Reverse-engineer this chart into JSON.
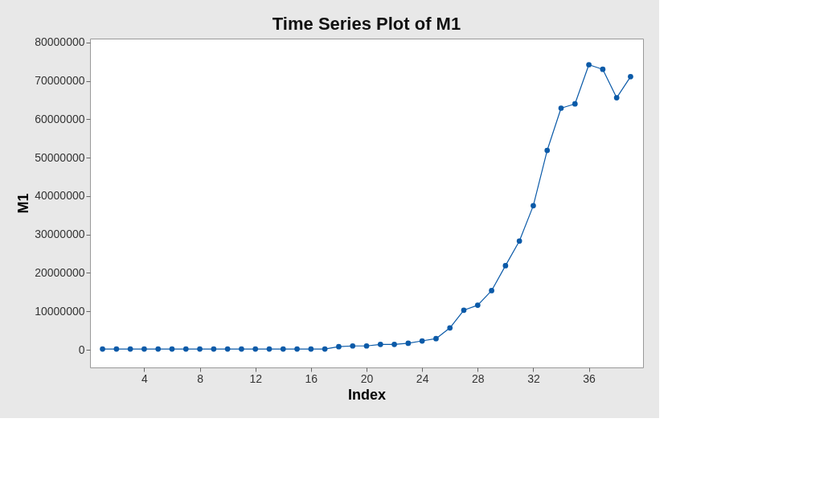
{
  "chart_data": {
    "type": "line",
    "title": "Time Series Plot of M1",
    "xlabel": "Index",
    "ylabel": "M1",
    "x": [
      1,
      2,
      3,
      4,
      5,
      6,
      7,
      8,
      9,
      10,
      11,
      12,
      13,
      14,
      15,
      16,
      17,
      18,
      19,
      20,
      21,
      22,
      23,
      24,
      25,
      26,
      27,
      28,
      29,
      30,
      31,
      32,
      33,
      34,
      35,
      36,
      37,
      38,
      39
    ],
    "series": [
      {
        "color": "#0b5aa8",
        "values": [
          200000,
          200000,
          200000,
          200000,
          200000,
          200000,
          200000,
          200000,
          200000,
          200000,
          200000,
          200000,
          200000,
          200000,
          200000,
          200000,
          200000,
          800000,
          1000000,
          1000000,
          1400000,
          1400000,
          1700000,
          2300000,
          2900000,
          5700000,
          10300000,
          11600000,
          15400000,
          21900000,
          28300000,
          37500000,
          51900000,
          62900000,
          64000000,
          74200000,
          73000000,
          65600000,
          71100000
        ]
      }
    ],
    "xlim": [
      0.1,
      39.9
    ],
    "xticks": [
      4,
      8,
      12,
      16,
      20,
      24,
      28,
      32,
      36
    ],
    "ylim": [
      -4600000,
      81000000
    ],
    "yticks": [
      0,
      10000000,
      20000000,
      30000000,
      40000000,
      50000000,
      60000000,
      70000000,
      80000000
    ],
    "marker": "circle",
    "line_style": "solid",
    "grid": false,
    "legend": false
  }
}
